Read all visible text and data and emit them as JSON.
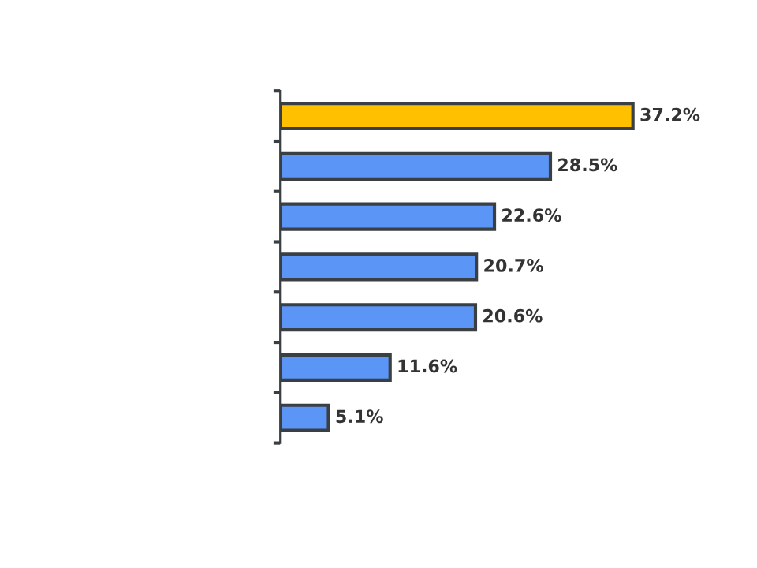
{
  "chart_data": {
    "type": "bar",
    "orientation": "horizontal",
    "categories": [
      null,
      null,
      null,
      null,
      null,
      null,
      null
    ],
    "values": [
      37.2,
      28.5,
      22.6,
      20.7,
      20.6,
      11.6,
      5.1
    ],
    "value_labels": [
      "37.2%",
      "28.5%",
      "22.6%",
      "20.7%",
      "20.6%",
      "11.6%",
      "5.1%"
    ],
    "colors": [
      "#ffc000",
      "#5b95f5",
      "#5b95f5",
      "#5b95f5",
      "#5b95f5",
      "#5b95f5",
      "#5b95f5"
    ],
    "grid": false,
    "legend": false
  }
}
